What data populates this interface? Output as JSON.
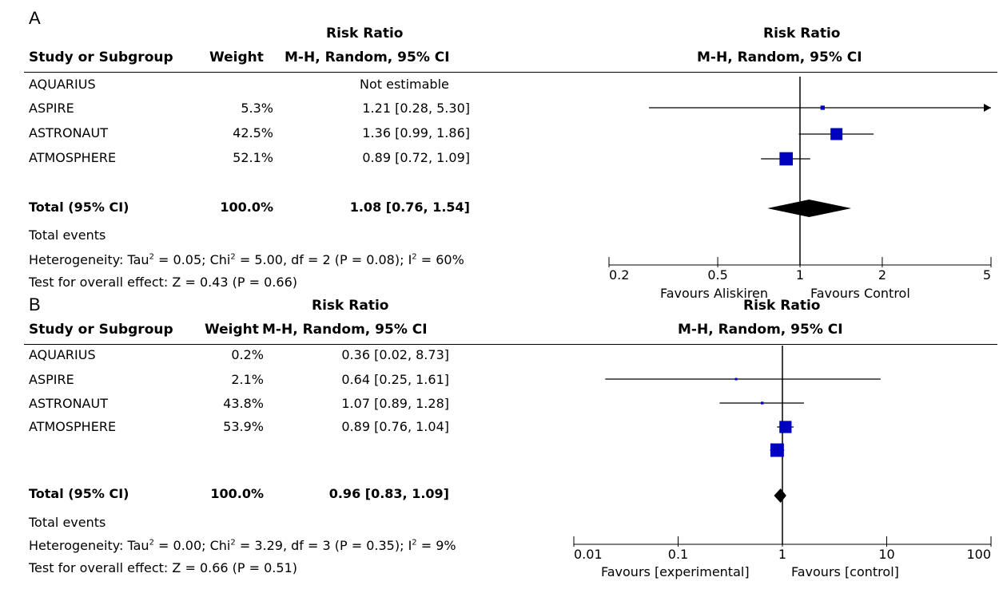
{
  "chart_data": [
    {
      "type": "forest",
      "panel_label": "A",
      "columns": {
        "study": "Study or Subgroup",
        "weight": "Weight",
        "effect_top": "Risk Ratio",
        "effect_bottom": "M-H, Random, 95% CI"
      },
      "plot_header_top": "Risk Ratio",
      "plot_header_bottom": "M-H, Random, 95% CI",
      "studies": [
        {
          "name": "AQUARIUS",
          "weight": "",
          "ci_text": "Not estimable",
          "rr": null,
          "lo": null,
          "hi": null,
          "w": 0
        },
        {
          "name": "ASPIRE",
          "weight": "5.3%",
          "ci_text": "1.21 [0.28, 5.30]",
          "rr": 1.21,
          "lo": 0.28,
          "hi": 5.3,
          "w": 5.3
        },
        {
          "name": "ASTRONAUT",
          "weight": "42.5%",
          "ci_text": "1.36 [0.99, 1.86]",
          "rr": 1.36,
          "lo": 0.99,
          "hi": 1.86,
          "w": 42.5
        },
        {
          "name": "ATMOSPHERE",
          "weight": "52.1%",
          "ci_text": "0.89 [0.72, 1.09]",
          "rr": 0.89,
          "lo": 0.72,
          "hi": 1.09,
          "w": 52.1
        }
      ],
      "total": {
        "label": "Total (95% CI)",
        "weight": "100.0%",
        "ci_text": "1.08 [0.76, 1.54]",
        "rr": 1.08,
        "lo": 0.76,
        "hi": 1.54
      },
      "total_events_label": "Total events",
      "heterogeneity": {
        "prefix": "Heterogeneity: Tau",
        "tau_val": " = 0.05; Chi",
        "chi_val": " = 5.00, df = 2 (P = 0.08); I",
        "i2_val": " = 60%",
        "sup": "2"
      },
      "overall_effect": "Test for overall effect: Z = 0.43 (P = 0.66)",
      "xaxis": {
        "scale": "log",
        "min": 0.2,
        "max": 5,
        "ticks": [
          "0.2",
          "0.5",
          "1",
          "2",
          "5"
        ],
        "tick_values": [
          0.2,
          0.5,
          1,
          2,
          5
        ]
      },
      "favours_left": "Favours Aliskiren",
      "favours_right": "Favours Control",
      "colors": {
        "square": "#0000c0",
        "diamond": "#000000"
      }
    },
    {
      "type": "forest",
      "panel_label": "B",
      "columns": {
        "study": "Study or Subgroup",
        "weight": "Weight",
        "effect_top": "Risk Ratio",
        "effect_bottom": "M-H, Random, 95% CI"
      },
      "plot_header_top": "Risk Ratio",
      "plot_header_bottom": "M-H, Random, 95% CI",
      "studies": [
        {
          "name": "AQUARIUS",
          "weight": "0.2%",
          "ci_text": "0.36 [0.02, 8.73]",
          "rr": 0.36,
          "lo": 0.02,
          "hi": 8.73,
          "w": 0.2
        },
        {
          "name": "ASPIRE",
          "weight": "2.1%",
          "ci_text": "0.64 [0.25, 1.61]",
          "rr": 0.64,
          "lo": 0.25,
          "hi": 1.61,
          "w": 2.1
        },
        {
          "name": "ASTRONAUT",
          "weight": "43.8%",
          "ci_text": "1.07 [0.89, 1.28]",
          "rr": 1.07,
          "lo": 0.89,
          "hi": 1.28,
          "w": 43.8
        },
        {
          "name": "ATMOSPHERE",
          "weight": "53.9%",
          "ci_text": "0.89 [0.76, 1.04]",
          "rr": 0.89,
          "lo": 0.76,
          "hi": 1.04,
          "w": 53.9
        }
      ],
      "total": {
        "label": "Total (95% CI)",
        "weight": "100.0%",
        "ci_text": "0.96 [0.83, 1.09]",
        "rr": 0.96,
        "lo": 0.83,
        "hi": 1.09
      },
      "total_events_label": "Total events",
      "heterogeneity": {
        "prefix": "Heterogeneity: Tau",
        "tau_val": " = 0.00; Chi",
        "chi_val": " = 3.29, df = 3 (P = 0.35); I",
        "i2_val": " = 9%",
        "sup": "2"
      },
      "overall_effect": "Test for overall effect: Z = 0.66 (P = 0.51)",
      "xaxis": {
        "scale": "log",
        "min": 0.01,
        "max": 100,
        "ticks": [
          "0.01",
          "0.1",
          "1",
          "10",
          "100"
        ],
        "tick_values": [
          0.01,
          0.1,
          1,
          10,
          100
        ]
      },
      "favours_left": "Favours [experimental]",
      "favours_right": "Favours [control]",
      "colors": {
        "square": "#0000c0",
        "diamond": "#000000"
      }
    }
  ]
}
